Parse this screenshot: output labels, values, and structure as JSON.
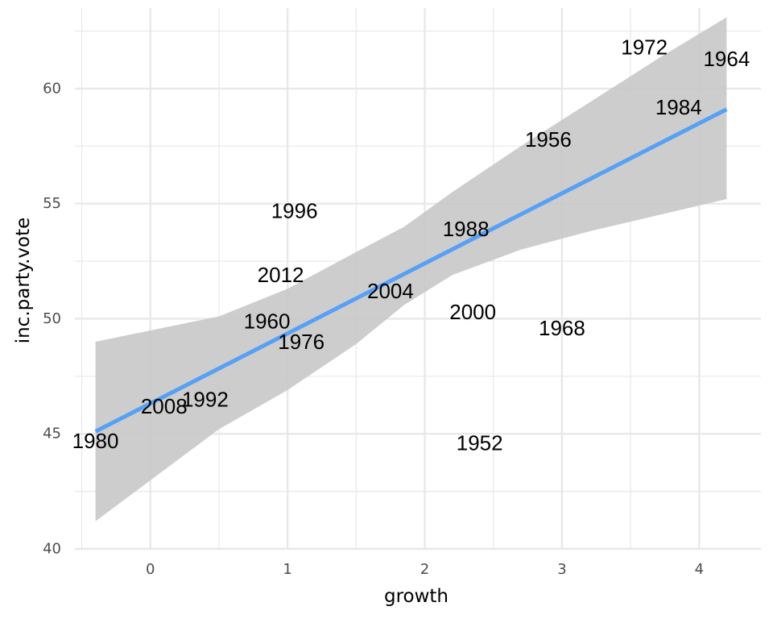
{
  "chart_data": {
    "type": "scatter",
    "title": "",
    "xlabel": "growth",
    "ylabel": "inc.party.vote",
    "xlim": [
      -0.55,
      4.45
    ],
    "ylim": [
      40,
      63.5
    ],
    "x_ticks": [
      0,
      1,
      2,
      3,
      4
    ],
    "y_ticks": [
      40,
      45,
      50,
      55,
      60
    ],
    "grid": true,
    "marker": "text-label",
    "points": [
      {
        "label": "1952",
        "x": 2.4,
        "y": 44.6
      },
      {
        "label": "1956",
        "x": 2.9,
        "y": 57.8
      },
      {
        "label": "1960",
        "x": 0.85,
        "y": 49.9
      },
      {
        "label": "1964",
        "x": 4.2,
        "y": 61.3
      },
      {
        "label": "1968",
        "x": 3.0,
        "y": 49.6
      },
      {
        "label": "1972",
        "x": 3.6,
        "y": 61.8
      },
      {
        "label": "1976",
        "x": 1.1,
        "y": 49.0
      },
      {
        "label": "1980",
        "x": -0.4,
        "y": 44.7
      },
      {
        "label": "1984",
        "x": 3.85,
        "y": 59.2
      },
      {
        "label": "1988",
        "x": 2.3,
        "y": 53.9
      },
      {
        "label": "1992",
        "x": 0.4,
        "y": 46.5
      },
      {
        "label": "1996",
        "x": 1.05,
        "y": 54.7
      },
      {
        "label": "2000",
        "x": 2.35,
        "y": 50.3
      },
      {
        "label": "2004",
        "x": 1.75,
        "y": 51.2
      },
      {
        "label": "2008",
        "x": 0.1,
        "y": 46.2
      },
      {
        "label": "2012",
        "x": 0.95,
        "y": 51.9
      }
    ],
    "fit": {
      "method": "linear",
      "x": [
        -0.4,
        4.2
      ],
      "y": [
        45.1,
        59.1
      ],
      "ci_lower_x": [
        -0.4,
        0.5,
        1.0,
        1.5,
        1.85,
        2.2,
        2.7,
        3.2,
        3.7,
        4.2
      ],
      "ci_lower": [
        41.2,
        45.2,
        46.9,
        48.9,
        50.6,
        51.9,
        53.0,
        53.8,
        54.5,
        55.2
      ],
      "ci_upper_x": [
        -0.4,
        0.5,
        1.0,
        1.5,
        1.85,
        2.2,
        2.7,
        3.2,
        3.7,
        4.2
      ],
      "ci_upper": [
        49.0,
        50.1,
        51.3,
        52.9,
        54.0,
        55.5,
        57.5,
        59.4,
        61.3,
        63.1
      ]
    },
    "colors": {
      "fit_line": "#56a0f5",
      "ci_band": "#c8c8c8",
      "grid": "#e8e8e8",
      "text": "#000000",
      "tick_text": "#4d4d4d"
    }
  }
}
